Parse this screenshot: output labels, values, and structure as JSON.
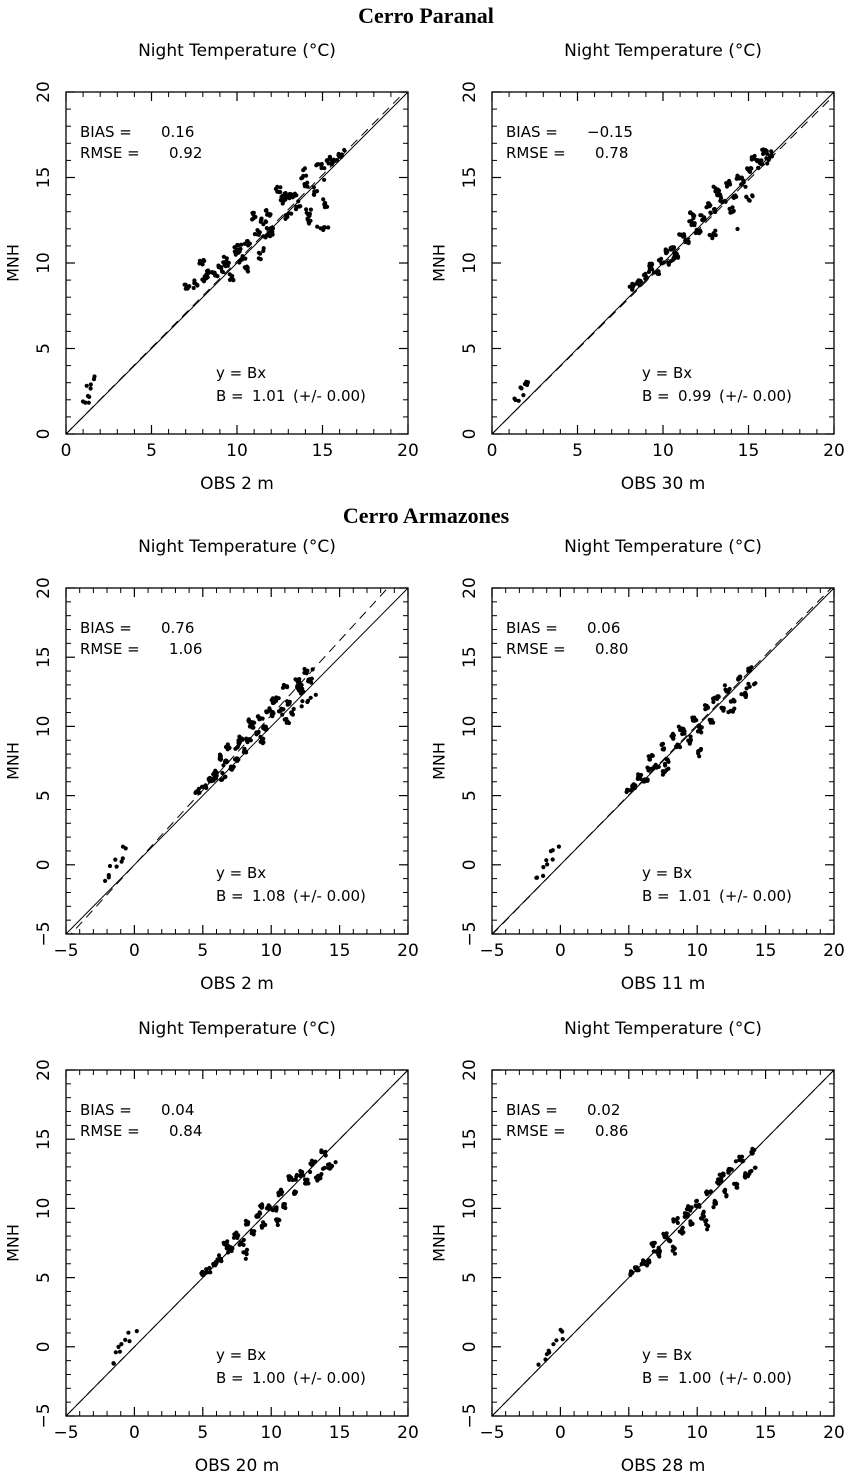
{
  "sections": [
    {
      "title": "Cerro Paranal"
    },
    {
      "title": "Cerro Armazones"
    }
  ],
  "chart_data": [
    {
      "type": "scatter",
      "site": "Cerro Paranal",
      "title": "Night Temperature (°C)",
      "xlabel": "OBS 2 m",
      "ylabel": "MNH",
      "xlim": [
        0,
        20
      ],
      "ylim": [
        0,
        20
      ],
      "xticks": [
        "0",
        "5",
        "10",
        "15",
        "20"
      ],
      "yticks": [
        "0",
        "5",
        "10",
        "15",
        "20"
      ],
      "stats": {
        "bias_label": "BIAS =",
        "bias": "0.16",
        "rmse_label": "RMSE =",
        "rmse": "0.92"
      },
      "fit": {
        "equation": "y = Bx",
        "b_label": "B =",
        "b": "1.01",
        "err": "(+/-   0.00)",
        "slope": 1.01
      },
      "low_cluster": {
        "x": [
          1.0,
          2.0
        ],
        "y": [
          1.8,
          3.3
        ]
      },
      "x": [
        7.1,
        7.5,
        7.9,
        8.3,
        8.7,
        9.0,
        9.4,
        9.7,
        10.0,
        10.3,
        10.6,
        10.9,
        11.2,
        11.5,
        11.8,
        12.1,
        12.4,
        12.7,
        13.0,
        13.3,
        13.6,
        13.9,
        14.2,
        14.5,
        14.8,
        15.1,
        15.4,
        15.7,
        16.0,
        16.3,
        8.0,
        9.2,
        10.5,
        11.7,
        12.9,
        14.1,
        15.3,
        10.0,
        11.3,
        12.6,
        13.9,
        15.2
      ],
      "y": [
        8.6,
        8.7,
        10.1,
        9.4,
        9.3,
        9.6,
        10.2,
        9.1,
        10.6,
        10.2,
        11.0,
        12.8,
        11.7,
        12.4,
        13.0,
        11.7,
        14.3,
        13.9,
        12.7,
        14.0,
        13.2,
        15.4,
        12.4,
        14.1,
        15.8,
        13.3,
        16.1,
        15.9,
        16.3,
        16.5,
        9.1,
        10.0,
        9.5,
        11.6,
        14.0,
        13.0,
        12.1,
        11.0,
        10.3,
        13.6,
        14.6,
        15.0
      ]
    },
    {
      "type": "scatter",
      "site": "Cerro Paranal",
      "title": "Night Temperature (°C)",
      "xlabel": "OBS 30 m",
      "ylabel": "MNH",
      "xlim": [
        0,
        20
      ],
      "ylim": [
        0,
        20
      ],
      "xticks": [
        "0",
        "5",
        "10",
        "15",
        "20"
      ],
      "yticks": [
        "0",
        "5",
        "10",
        "15",
        "20"
      ],
      "stats": {
        "bias_label": "BIAS =",
        "bias": "−0.15",
        "rmse_label": "RMSE =",
        "rmse": "0.78"
      },
      "fit": {
        "equation": "y = Bx",
        "b_label": "B =",
        "b": "0.99",
        "err": "(+/-   0.00)",
        "slope": 0.99
      },
      "low_cluster": {
        "x": [
          1.2,
          2.6
        ],
        "y": [
          1.8,
          3.2
        ]
      },
      "x": [
        8.2,
        8.6,
        9.0,
        9.3,
        9.6,
        9.9,
        10.2,
        10.5,
        10.8,
        11.1,
        11.4,
        11.7,
        12.0,
        12.3,
        12.6,
        12.9,
        13.2,
        13.5,
        13.8,
        14.1,
        14.4,
        14.7,
        15.0,
        15.3,
        15.6,
        15.9,
        16.2,
        16.5,
        9.1,
        10.4,
        11.6,
        12.8,
        14.0,
        15.2,
        13.0,
        14.5
      ],
      "y": [
        8.6,
        8.8,
        9.2,
        9.9,
        9.4,
        10.1,
        10.6,
        10.9,
        10.4,
        11.6,
        11.2,
        12.4,
        11.8,
        12.6,
        13.4,
        12.9,
        14.1,
        13.6,
        14.7,
        13.9,
        15.1,
        14.6,
        15.4,
        16.2,
        15.9,
        16.5,
        16.2,
        16.4,
        9.6,
        9.9,
        12.9,
        11.6,
        13.0,
        13.8,
        14.4,
        12.0
      ]
    },
    {
      "type": "scatter",
      "site": "Cerro Armazones",
      "title": "Night Temperature (°C)",
      "xlabel": "OBS 2 m",
      "ylabel": "MNH",
      "xlim": [
        -5,
        20
      ],
      "ylim": [
        -5,
        20
      ],
      "xticks": [
        "−5",
        "0",
        "5",
        "10",
        "15",
        "20"
      ],
      "yticks": [
        "−5",
        "0",
        "5",
        "10",
        "15",
        "20"
      ],
      "stats": {
        "bias_label": "BIAS =",
        "bias": "0.76",
        "rmse_label": "RMSE =",
        "rmse": "1.06"
      },
      "fit": {
        "equation": "y = Bx",
        "b_label": "B =",
        "b": "1.08",
        "err": "(+/-   0.00)",
        "slope": 1.08
      },
      "low_cluster": {
        "x": [
          -2.3,
          0.3
        ],
        "y": [
          -1.2,
          1.3
        ]
      },
      "x": [
        4.6,
        5.1,
        5.5,
        5.9,
        6.2,
        6.5,
        6.8,
        7.1,
        7.4,
        7.7,
        8.0,
        8.3,
        8.6,
        8.9,
        9.2,
        9.5,
        9.8,
        10.1,
        10.4,
        10.7,
        11.0,
        11.3,
        11.6,
        11.9,
        12.2,
        12.5,
        12.8,
        13.1,
        5.7,
        6.6,
        7.5,
        8.4,
        9.3,
        10.2,
        11.1,
        12.0,
        13.0
      ],
      "y": [
        5.3,
        5.6,
        6.1,
        6.5,
        7.9,
        6.2,
        8.6,
        7.0,
        7.6,
        9.2,
        8.2,
        9.0,
        10.1,
        9.4,
        10.6,
        9.8,
        11.2,
        10.7,
        12.1,
        11.0,
        12.9,
        11.8,
        10.9,
        13.3,
        12.4,
        14.0,
        13.3,
        12.3,
        6.0,
        7.3,
        8.5,
        10.4,
        8.8,
        11.9,
        10.2,
        12.8,
        14.1
      ]
    },
    {
      "type": "scatter",
      "site": "Cerro Armazones",
      "title": "Night Temperature (°C)",
      "xlabel": "OBS 11 m",
      "ylabel": "MNH",
      "xlim": [
        -5,
        20
      ],
      "ylim": [
        -5,
        20
      ],
      "xticks": [
        "−5",
        "0",
        "5",
        "10",
        "15",
        "20"
      ],
      "yticks": [
        "−5",
        "0",
        "5",
        "10",
        "15",
        "20"
      ],
      "stats": {
        "bias_label": "BIAS =",
        "bias": "0.06",
        "rmse_label": "RMSE =",
        "rmse": "0.80"
      },
      "fit": {
        "equation": "y = Bx",
        "b_label": "B =",
        "b": "1.01",
        "err": "(+/-   0.00)",
        "slope": 1.01
      },
      "low_cluster": {
        "x": [
          -1.9,
          0.6
        ],
        "y": [
          -1.1,
          1.4
        ]
      },
      "x": [
        5.0,
        5.4,
        5.8,
        6.2,
        6.6,
        7.0,
        7.4,
        7.8,
        8.2,
        8.6,
        9.0,
        9.4,
        9.8,
        10.2,
        10.6,
        11.0,
        11.4,
        11.8,
        12.2,
        12.6,
        13.0,
        13.4,
        13.8,
        14.2,
        6.4,
        7.6,
        8.8,
        10.0,
        11.2,
        12.4,
        13.6
      ],
      "y": [
        5.3,
        5.6,
        6.4,
        6.0,
        7.8,
        7.1,
        8.6,
        7.3,
        9.3,
        8.4,
        9.6,
        8.9,
        10.6,
        9.7,
        11.4,
        10.3,
        12.2,
        11.2,
        12.8,
        11.7,
        13.6,
        12.2,
        14.2,
        13.2,
        7.0,
        6.6,
        9.9,
        8.0,
        12.0,
        10.9,
        13.0
      ]
    },
    {
      "type": "scatter",
      "site": "Cerro Armazones",
      "title": "Night Temperature (°C)",
      "xlabel": "OBS 20 m",
      "ylabel": "MNH",
      "xlim": [
        -5,
        20
      ],
      "ylim": [
        -5,
        20
      ],
      "xticks": [
        "−5",
        "0",
        "5",
        "10",
        "15",
        "20"
      ],
      "yticks": [
        "−5",
        "0",
        "5",
        "10",
        "15",
        "20"
      ],
      "stats": {
        "bias_label": "BIAS =",
        "bias": "0.04",
        "rmse_label": "RMSE =",
        "rmse": "0.84"
      },
      "fit": {
        "equation": "y = Bx",
        "b_label": "B =",
        "b": "1.00",
        "err": "(+/-   0.00)",
        "slope": 1.0
      },
      "low_cluster": {
        "x": [
          -1.8,
          0.8
        ],
        "y": [
          -1.2,
          1.3
        ]
      },
      "x": [
        5.0,
        5.4,
        5.8,
        6.2,
        6.6,
        7.0,
        7.4,
        7.8,
        8.2,
        8.6,
        9.0,
        9.4,
        9.8,
        10.2,
        10.6,
        11.0,
        11.4,
        11.8,
        12.2,
        12.6,
        13.0,
        13.4,
        13.8,
        14.2,
        14.6,
        6.8,
        8.0,
        9.2,
        10.4,
        11.6,
        12.8
      ],
      "y": [
        5.3,
        5.5,
        6.0,
        6.3,
        7.6,
        6.9,
        8.1,
        7.4,
        9.0,
        8.2,
        9.6,
        8.7,
        10.1,
        9.8,
        11.2,
        10.0,
        12.3,
        11.0,
        12.6,
        11.8,
        13.4,
        12.1,
        14.1,
        13.0,
        13.3,
        7.2,
        6.5,
        10.2,
        8.9,
        12.2,
        12.7
      ]
    },
    {
      "type": "scatter",
      "site": "Cerro Armazones",
      "title": "Night Temperature (°C)",
      "xlabel": "OBS 28 m",
      "ylabel": "MNH",
      "xlim": [
        -5,
        20
      ],
      "ylim": [
        -5,
        20
      ],
      "xticks": [
        "−5",
        "0",
        "5",
        "10",
        "15",
        "20"
      ],
      "yticks": [
        "−5",
        "0",
        "5",
        "10",
        "15",
        "20"
      ],
      "stats": {
        "bias_label": "BIAS =",
        "bias": "0.02",
        "rmse_label": "RMSE =",
        "rmse": "0.86"
      },
      "fit": {
        "equation": "y = Bx",
        "b_label": "B =",
        "b": "1.00",
        "err": "(+/-   0.00)",
        "slope": 1.0
      },
      "low_cluster": {
        "x": [
          -1.5,
          1.1
        ],
        "y": [
          -1.2,
          1.2
        ]
      },
      "x": [
        5.2,
        5.6,
        6.0,
        6.4,
        6.8,
        7.2,
        7.6,
        8.0,
        8.4,
        8.8,
        9.2,
        9.6,
        10.0,
        10.4,
        10.8,
        11.2,
        11.6,
        12.0,
        12.4,
        12.8,
        13.2,
        13.6,
        14.0,
        14.4,
        7.0,
        8.2,
        9.4,
        10.6,
        11.8,
        13.0
      ],
      "y": [
        5.3,
        5.6,
        6.1,
        6.0,
        7.5,
        6.6,
        8.1,
        7.6,
        9.2,
        8.3,
        9.6,
        8.8,
        10.4,
        9.4,
        11.2,
        10.2,
        12.0,
        11.0,
        12.8,
        11.6,
        13.6,
        12.2,
        14.2,
        13.0,
        7.0,
        6.9,
        10.1,
        8.6,
        12.3,
        13.5
      ]
    }
  ]
}
